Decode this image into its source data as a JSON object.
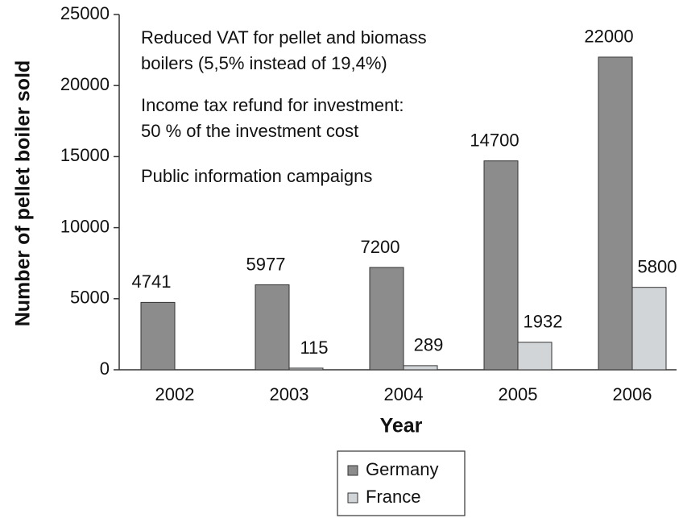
{
  "chart_data": {
    "type": "bar",
    "x_label": "Year",
    "y_label": "Number of pellet boiler sold",
    "categories": [
      "2002",
      "2003",
      "2004",
      "2005",
      "2006"
    ],
    "series": [
      {
        "name": "Germany",
        "color": "#8c8c8c",
        "values": [
          4741,
          5977,
          7200,
          14700,
          22000
        ]
      },
      {
        "name": "France",
        "color": "#d2d5d8",
        "values": [
          null,
          115,
          289,
          1932,
          5800
        ]
      }
    ],
    "ylim": [
      0,
      25000
    ],
    "yticks": [
      0,
      5000,
      10000,
      15000,
      20000,
      25000
    ],
    "annotations": [
      "Reduced VAT for pellet and biomass",
      "boilers (5,5% instead of 19,4%)",
      "Income tax refund for investment:",
      "50 % of the investment cost",
      "Public information campaigns"
    ],
    "legend": "bottom"
  }
}
